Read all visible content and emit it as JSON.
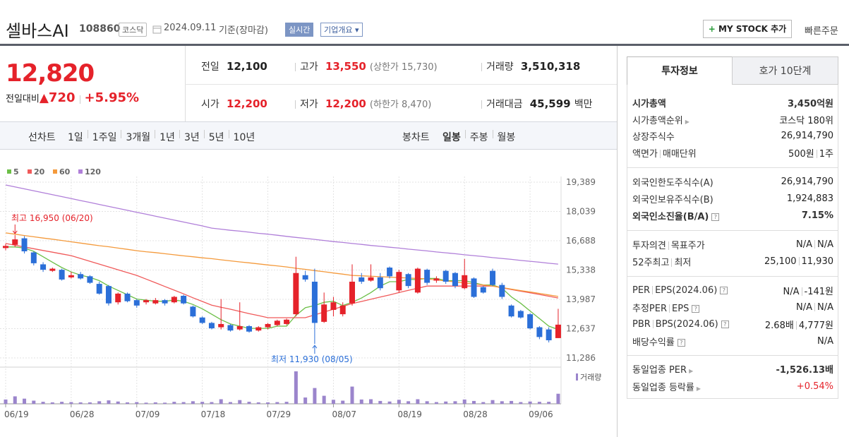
{
  "header": {
    "name": "셀바스AI",
    "code": "108860",
    "market": "코스닥",
    "date": "2024.09.11",
    "basis": "기준(장마감)",
    "realtime": "실시간",
    "company_info": "기업개요",
    "my_stock": "MY STOCK 추가",
    "quick_order": "빠른주문"
  },
  "quote": {
    "price": "12,820",
    "change_label": "전일대비",
    "change": "720",
    "change_pct": "+5.95%",
    "items": [
      {
        "label": "전일",
        "value": "12,100"
      },
      {
        "label": "고가",
        "value": "13,550",
        "note": "(상한가 15,730)"
      },
      {
        "label": "거래량",
        "value": "3,510,318"
      },
      {
        "label": "시가",
        "value": "12,200"
      },
      {
        "label": "저가",
        "value": "12,200",
        "note": "(하한가 8,470)"
      },
      {
        "label": "거래대금",
        "value": "45,599",
        "unit": "백만"
      }
    ]
  },
  "periods": {
    "line_label": "선차트",
    "line": [
      "1일",
      "1주일",
      "3개월",
      "1년",
      "3년",
      "5년",
      "10년"
    ],
    "candle_label": "봉차트",
    "candle": [
      "일봉",
      "주봉",
      "월봉"
    ]
  },
  "chart_data": {
    "type": "candlestick",
    "categories": [
      "06/19",
      null,
      null,
      null,
      null,
      null,
      null,
      "06/28",
      null,
      null,
      null,
      null,
      null,
      null,
      "07/09",
      null,
      null,
      null,
      null,
      null,
      null,
      "07/18",
      null,
      null,
      null,
      null,
      null,
      null,
      "07/29",
      null,
      null,
      null,
      null,
      null,
      null,
      "08/07",
      null,
      null,
      null,
      null,
      null,
      null,
      "08/19",
      null,
      null,
      null,
      null,
      null,
      null,
      "08/28",
      null,
      null,
      null,
      null,
      null,
      null,
      "09/06",
      null,
      null,
      null
    ],
    "open": [
      16350,
      16500,
      16800,
      16150,
      15600,
      15300,
      15350,
      15000,
      15150,
      15050,
      14700,
      14600,
      13850,
      14250,
      13950,
      13850,
      13800,
      13950,
      13850,
      14150,
      13650,
      13150,
      12900,
      12700,
      12800,
      12600,
      12750,
      12550,
      12700,
      12800,
      12850,
      13300,
      15100,
      14800,
      12950,
      13500,
      13300,
      13800,
      15000,
      14850,
      15000,
      15450,
      14400,
      15150,
      14300,
      15350,
      14850,
      15300,
      15200,
      14500,
      14950,
      14550,
      15300,
      14650,
      13700,
      13450,
      13300,
      12700,
      12600,
      12200
    ],
    "high": [
      16550,
      16950,
      16900,
      16200,
      15700,
      15450,
      15400,
      15250,
      15250,
      15100,
      14800,
      14650,
      14300,
      14300,
      14000,
      14000,
      14050,
      14000,
      14150,
      14200,
      13700,
      13200,
      12950,
      14000,
      12850,
      13850,
      12800,
      12750,
      12900,
      13050,
      13100,
      15950,
      15300,
      15400,
      14300,
      14100,
      13850,
      15600,
      15200,
      15600,
      15200,
      15500,
      15350,
      15200,
      15450,
      15400,
      15050,
      15350,
      15250,
      15850,
      15000,
      14600,
      15400,
      14750,
      13750,
      13500,
      13350,
      12750,
      12700,
      13550
    ],
    "low": [
      16250,
      16400,
      16100,
      15550,
      15250,
      15250,
      14850,
      14950,
      14900,
      14700,
      14200,
      13700,
      13750,
      13850,
      13600,
      13750,
      13750,
      13700,
      13800,
      13750,
      13150,
      12850,
      12600,
      12600,
      12500,
      12550,
      12450,
      12500,
      12600,
      12750,
      12800,
      13200,
      14800,
      11930,
      12900,
      13200,
      13200,
      13700,
      14700,
      14800,
      14400,
      14950,
      14300,
      14500,
      14250,
      14650,
      14750,
      14700,
      14500,
      14450,
      14050,
      14250,
      14600,
      14000,
      13150,
      13100,
      12600,
      12150,
      12000,
      12200
    ],
    "close": [
      16450,
      16750,
      16200,
      15650,
      15350,
      15400,
      14900,
      15100,
      14950,
      14750,
      14250,
      13800,
      14250,
      13900,
      13700,
      13950,
      13950,
      13800,
      14100,
      13800,
      13200,
      12900,
      12650,
      12850,
      12550,
      12750,
      12500,
      12700,
      12850,
      13000,
      13050,
      15200,
      14900,
      12900,
      13750,
      13850,
      13700,
      14800,
      14800,
      15000,
      14500,
      15050,
      15250,
      14600,
      15400,
      14750,
      14950,
      14800,
      14600,
      15100,
      14100,
      14300,
      14650,
      14100,
      13200,
      13150,
      12650,
      12250,
      12100,
      12820
    ],
    "up_color": "#e5222a",
    "down_color": "#2b6fd8",
    "series": [
      {
        "name": "5",
        "color": "#6cbf47",
        "values": [
          16400,
          16400,
          16350,
          16200,
          15950,
          15700,
          15450,
          15250,
          15100,
          15000,
          14850,
          14600,
          14400,
          14200,
          14000,
          13950,
          13900,
          13900,
          13950,
          13900,
          13750,
          13550,
          13300,
          13050,
          12850,
          12750,
          12650,
          12650,
          12650,
          12750,
          12750,
          13250,
          13600,
          13700,
          13850,
          13900,
          13700,
          13850,
          14050,
          14300,
          14600,
          14800,
          14800,
          14900,
          14900,
          14950,
          14950,
          14850,
          14850,
          14850,
          14750,
          14650,
          14650,
          14500,
          14100,
          13800,
          13450,
          13100,
          12750,
          12600
        ]
      },
      {
        "name": "20",
        "color": "#f05a5a",
        "values": [
          16560,
          16480,
          16400,
          16320,
          16240,
          16160,
          16080,
          16000,
          15870,
          15740,
          15610,
          15480,
          15350,
          15220,
          15090,
          14920,
          14750,
          14580,
          14410,
          14240,
          14060,
          13890,
          13720,
          13620,
          13530,
          13430,
          13330,
          13240,
          13140,
          13140,
          13140,
          13140,
          13140,
          13270,
          13400,
          13530,
          13660,
          13790,
          13890,
          13990,
          14090,
          14190,
          14300,
          14400,
          14500,
          14600,
          14600,
          14600,
          14600,
          14600,
          14600,
          14600,
          14600,
          14520,
          14440,
          14360,
          14290,
          14210,
          14130,
          14050
        ]
      },
      {
        "name": "60",
        "color": "#f49a3c",
        "values": [
          17050,
          16990,
          16930,
          16870,
          16810,
          16760,
          16700,
          16640,
          16580,
          16520,
          16460,
          16410,
          16350,
          16290,
          16230,
          16180,
          16140,
          16090,
          16040,
          15990,
          15950,
          15900,
          15860,
          15810,
          15760,
          15710,
          15670,
          15620,
          15570,
          15530,
          15480,
          15420,
          15370,
          15310,
          15260,
          15200,
          15150,
          15090,
          15070,
          15050,
          15030,
          15010,
          14990,
          14970,
          14950,
          14930,
          14880,
          14840,
          14790,
          14740,
          14700,
          14650,
          14600,
          14530,
          14460,
          14390,
          14330,
          14260,
          14190,
          14120
        ]
      },
      {
        "name": "120",
        "color": "#b07fd9",
        "values": [
          19260,
          19170,
          19080,
          18990,
          18900,
          18810,
          18720,
          18630,
          18540,
          18450,
          18360,
          18270,
          18180,
          18090,
          18000,
          17910,
          17820,
          17730,
          17640,
          17550,
          17460,
          17370,
          17270,
          17220,
          17170,
          17130,
          17080,
          17030,
          16990,
          16940,
          16890,
          16840,
          16800,
          16750,
          16700,
          16650,
          16610,
          16560,
          16520,
          16470,
          16430,
          16390,
          16350,
          16300,
          16260,
          16220,
          16170,
          16130,
          16090,
          16040,
          16000,
          15960,
          15910,
          15870,
          15830,
          15780,
          15740,
          15700,
          15650,
          15610
        ]
      }
    ],
    "volume": [
      1500000,
      2600000,
      1800000,
      1100000,
      700000,
      500000,
      700000,
      600000,
      500000,
      500000,
      900000,
      1200000,
      800000,
      500000,
      600000,
      400000,
      500000,
      400000,
      700000,
      600000,
      900000,
      700000,
      600000,
      1600000,
      600000,
      1300000,
      700000,
      500000,
      500000,
      600000,
      700000,
      11300000,
      2200000,
      5500000,
      2800000,
      1400000,
      1100000,
      6000000,
      1500000,
      1600000,
      1000000,
      800000,
      1400000,
      900000,
      1600000,
      900000,
      600000,
      800000,
      900000,
      1500000,
      1000000,
      600000,
      1300000,
      900000,
      1000000,
      600000,
      800000,
      700000,
      700000,
      3510318
    ],
    "volume_color": "#9b85cc",
    "volume_label": "거래량",
    "ylim": [
      10928,
      19649
    ],
    "yticks": [
      {
        "value": 19389,
        "label": "19,389"
      },
      {
        "value": 18039,
        "label": "18,039"
      },
      {
        "value": 16688,
        "label": "16,688"
      },
      {
        "value": 15338,
        "label": "15,338"
      },
      {
        "value": 13987,
        "label": "13,987"
      },
      {
        "value": 12637,
        "label": "12,637"
      },
      {
        "value": 11286,
        "label": "11,286"
      }
    ],
    "grid": true,
    "annotations": [
      {
        "text": "최고 16,950 (06/20)"
      },
      {
        "text": "최저 11,930 (08/05)"
      }
    ]
  },
  "info": {
    "tabs": [
      "투자정보",
      "호가 10단계"
    ],
    "rows": [
      {
        "label": "시가총액",
        "value": "3,450억원"
      },
      {
        "label": "시가총액순위",
        "value": "코스닥 180위"
      },
      {
        "label": "상장주식수",
        "value": "26,914,790"
      },
      {
        "labels": [
          "액면가",
          "매매단위"
        ],
        "values": [
          "500원",
          "1주"
        ]
      },
      {
        "label": "외국인한도주식수(A)",
        "value": "26,914,790"
      },
      {
        "label": "외국인보유주식수(B)",
        "value": "1,924,883"
      },
      {
        "label": "외국인소진율(B/A)",
        "value": "7.15%"
      },
      {
        "labels": [
          "투자의견",
          "목표주가"
        ],
        "values": [
          "N/A",
          "N/A"
        ]
      },
      {
        "labels": [
          "52주최고",
          "최저"
        ],
        "values": [
          "25,100",
          "11,930"
        ]
      },
      {
        "labels": [
          "PER",
          "EPS(2024.06)"
        ],
        "values": [
          "N/A",
          "-141원"
        ]
      },
      {
        "labels": [
          "추정PER",
          "EPS"
        ],
        "values": [
          "N/A",
          "N/A"
        ]
      },
      {
        "labels": [
          "PBR",
          "BPS(2024.06)"
        ],
        "values": [
          "2.68배",
          "4,777원"
        ]
      },
      {
        "label": "배당수익률",
        "value": "N/A"
      },
      {
        "label": "동일업종 PER",
        "value": "-1,526.13배"
      },
      {
        "label": "동일업종 등락률",
        "value": "+0.54%"
      }
    ]
  }
}
